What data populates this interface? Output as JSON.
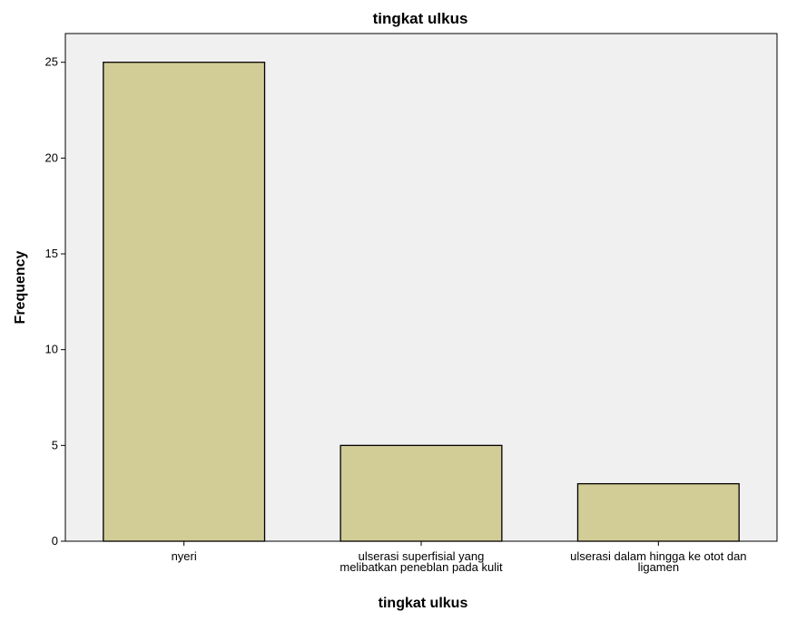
{
  "chart_data": {
    "type": "bar",
    "title": "tingkat ulkus",
    "xlabel": "tingkat ulkus",
    "ylabel": "Frequency",
    "categories": [
      [
        "nyeri"
      ],
      [
        "ulserasi superfisial yang",
        "melibatkan peneblan pada kulit"
      ],
      [
        "ulserasi dalam hingga ke otot dan",
        "ligamen"
      ]
    ],
    "values": [
      25,
      5,
      3
    ],
    "ylim": [
      0,
      26.5
    ],
    "yticks": [
      0,
      5,
      10,
      15,
      20,
      25
    ],
    "grid": false,
    "legend": "none",
    "colors": {
      "bar_fill": "#d2cd96",
      "bar_stroke": "#000000",
      "plot_background": "#f0f0f0",
      "axis": "#000000"
    }
  }
}
